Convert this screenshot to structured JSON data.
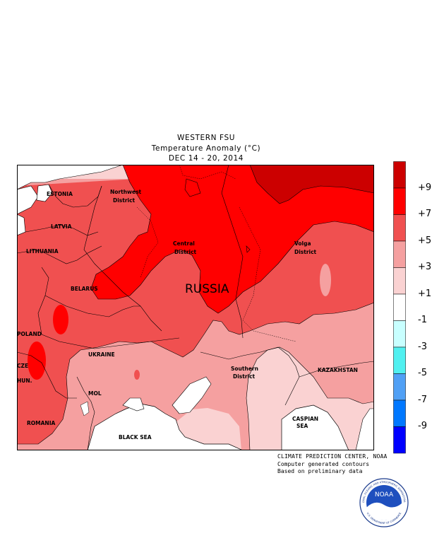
{
  "header": {
    "title": "WESTERN FSU",
    "subtitle": "Temperature Anomaly (°C)",
    "period": "DEC 14 - 20, 2014"
  },
  "map_labels": {
    "russia": "RUSSIA",
    "northwest_1": "Northwest",
    "northwest_2": "District",
    "central_1": "Central",
    "central_2": "District",
    "volga_1": "Volga",
    "volga_2": "District",
    "southern_1": "Southern",
    "southern_2": "District",
    "estonia": "ESTONIA",
    "latvia": "LATVIA",
    "lithuania": "LITHUANIA",
    "belarus": "BELARUS",
    "poland": "POLAND",
    "czech": "CZE",
    "hungary": "HUN.",
    "ukraine": "UKRAINE",
    "moldova": "MOL",
    "romania": "ROMANIA",
    "black_sea": "BLACK SEA",
    "kazakhstan": "KAZAKHSTAN",
    "caspian_1": "CASPIAN",
    "caspian_2": "SEA"
  },
  "legend": {
    "labels": [
      "+9",
      "+7",
      "+5",
      "+3",
      "+1",
      "-1",
      "-3",
      "-5",
      "-7",
      "-9"
    ],
    "colors": [
      "#cc0000",
      "#ff0000",
      "#f05050",
      "#f5a0a0",
      "#fad2d2",
      "#ffffff",
      "#c8ffff",
      "#50f0f0",
      "#50a0f5",
      "#0078ff",
      "#0000ff"
    ]
  },
  "credit": {
    "line1": "CLIMATE PREDICTION CENTER, NOAA",
    "line2": "Computer generated contours",
    "line3": "Based on preliminary data"
  },
  "logo": {
    "text": "NOAA",
    "ring_text": "NATIONAL OCEANIC AND ATMOSPHERIC ADMINISTRATION",
    "ring_text_bottom": "U.S. DEPARTMENT OF COMMERCE"
  }
}
